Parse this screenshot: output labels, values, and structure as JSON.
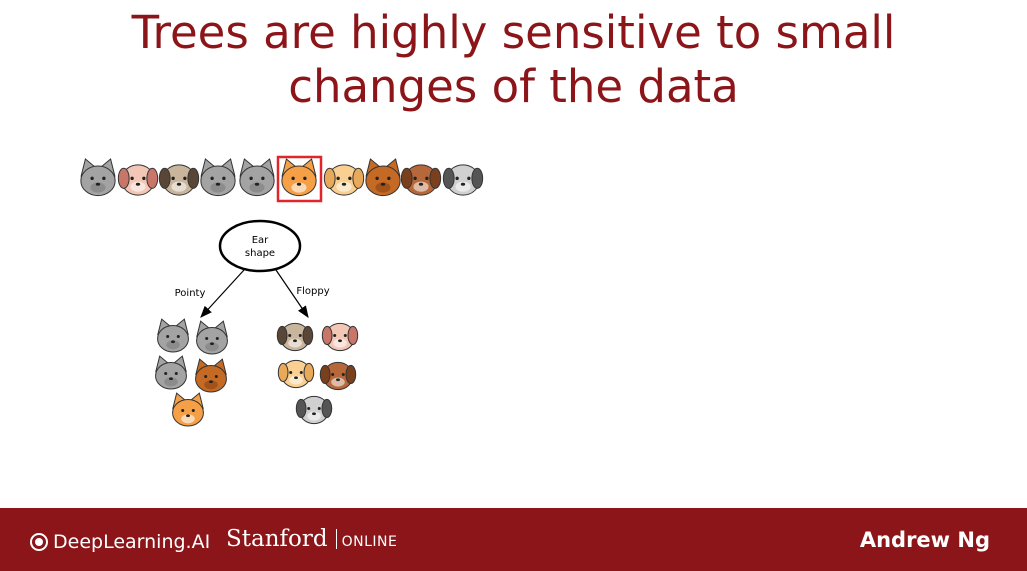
{
  "slide": {
    "title_line1": "Trees are highly sensitive to small",
    "title_line2": "changes of the data"
  },
  "diagram": {
    "root_node_line1": "Ear",
    "root_node_line2": "shape",
    "left_branch_label": "Pointy",
    "right_branch_label": "Floppy",
    "highlighted_example": "orange-cat",
    "highlight_color": "#e0262b",
    "examples_row": [
      "gray-cat",
      "pink-dog",
      "pug-dog",
      "gray-cat",
      "gray-cat",
      "orange-cat",
      "yellow-dog",
      "brown-cat",
      "brown-dog",
      "gray-dog"
    ],
    "left_group": [
      "gray-cat",
      "gray-cat",
      "gray-cat",
      "brown-cat",
      "orange-cat"
    ],
    "right_group": [
      "pug-dog",
      "pink-dog",
      "yellow-dog",
      "brown-dog",
      "gray-dog"
    ]
  },
  "footer": {
    "brand": "DeepLearning.AI",
    "university": "Stanford",
    "university_suffix": "ONLINE",
    "author": "Andrew Ng",
    "background_color": "#8b1518"
  }
}
